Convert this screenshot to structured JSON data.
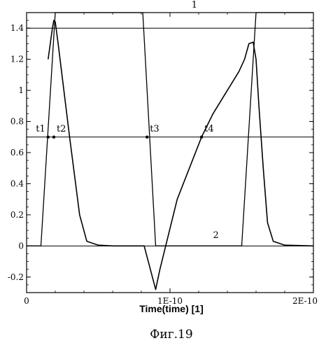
{
  "chart_data": {
    "type": "line",
    "title": "",
    "xlabel": "Time(time) [1]",
    "ylabel": "",
    "xlim": [
      0,
      2e-10
    ],
    "ylim": [
      -0.3,
      1.5
    ],
    "grid": false,
    "x_ticks": [
      {
        "value": 0,
        "label": "0"
      },
      {
        "value": 1e-10,
        "label": "1E-10"
      },
      {
        "value": 2e-10,
        "label": "2E-10"
      }
    ],
    "y_ticks": [
      {
        "value": -0.2,
        "label": "-0.2"
      },
      {
        "value": 0,
        "label": "0"
      },
      {
        "value": 0.2,
        "label": "0.2"
      },
      {
        "value": 0.4,
        "label": "0.4"
      },
      {
        "value": 0.6,
        "label": "0.6"
      },
      {
        "value": 0.8,
        "label": "0.8"
      },
      {
        "value": 1,
        "label": "1"
      },
      {
        "value": 1.2,
        "label": "1.2"
      },
      {
        "value": 1.4,
        "label": "1.4"
      }
    ],
    "hlines": [
      1.4,
      0.7,
      0
    ],
    "series": [
      {
        "name": "1",
        "points": [
          [
            0,
            0
          ],
          [
            1e-11,
            0
          ],
          [
            2e-11,
            1.5
          ],
          [
            8.1e-11,
            1.5
          ],
          [
            9e-11,
            0
          ],
          [
            1.5e-10,
            0
          ],
          [
            1.6e-10,
            1.5
          ],
          [
            2e-10,
            1.5
          ]
        ]
      },
      {
        "name": "2",
        "points": [
          [
            1.5e-11,
            1.2
          ],
          [
            1.8e-11,
            1.4
          ],
          [
            1.9e-11,
            1.45
          ],
          [
            2e-11,
            1.44
          ],
          [
            2.2e-11,
            1.3
          ],
          [
            3e-11,
            0.7
          ],
          [
            3.7e-11,
            0.2
          ],
          [
            4.2e-11,
            0.03
          ],
          [
            5e-11,
            0.005
          ],
          [
            6e-11,
            0
          ],
          [
            8.2e-11,
            0
          ],
          [
            9e-11,
            -0.28
          ],
          [
            9.3e-11,
            -0.15
          ],
          [
            1.05e-10,
            0.3
          ],
          [
            1.22e-10,
            0.7
          ],
          [
            1.3e-10,
            0.85
          ],
          [
            1.4e-10,
            1.0
          ],
          [
            1.48e-10,
            1.12
          ],
          [
            1.52e-10,
            1.2
          ],
          [
            1.55e-10,
            1.3
          ],
          [
            1.58e-10,
            1.31
          ],
          [
            1.6e-10,
            1.2
          ],
          [
            1.62e-10,
            0.9
          ],
          [
            1.65e-10,
            0.5
          ],
          [
            1.68e-10,
            0.15
          ],
          [
            1.72e-10,
            0.03
          ],
          [
            1.8e-10,
            0.005
          ],
          [
            2e-10,
            0
          ]
        ]
      }
    ],
    "annotations": [
      {
        "text": "1",
        "x": 1.17e-10,
        "y": 1.55,
        "dot": false
      },
      {
        "text": "2",
        "x": 1.32e-10,
        "y": 0.07,
        "dot": false
      },
      {
        "text": "t1",
        "x": 1.5e-11,
        "y": 0.7,
        "dot": true
      },
      {
        "text": "t2",
        "x": 1.9e-11,
        "y": 0.7,
        "dot": true
      },
      {
        "text": "t3",
        "x": 8.4e-11,
        "y": 0.7,
        "dot": true
      },
      {
        "text": "t4",
        "x": 1.22e-10,
        "y": 0.7,
        "dot": true
      }
    ],
    "caption": "Фиг.19"
  }
}
